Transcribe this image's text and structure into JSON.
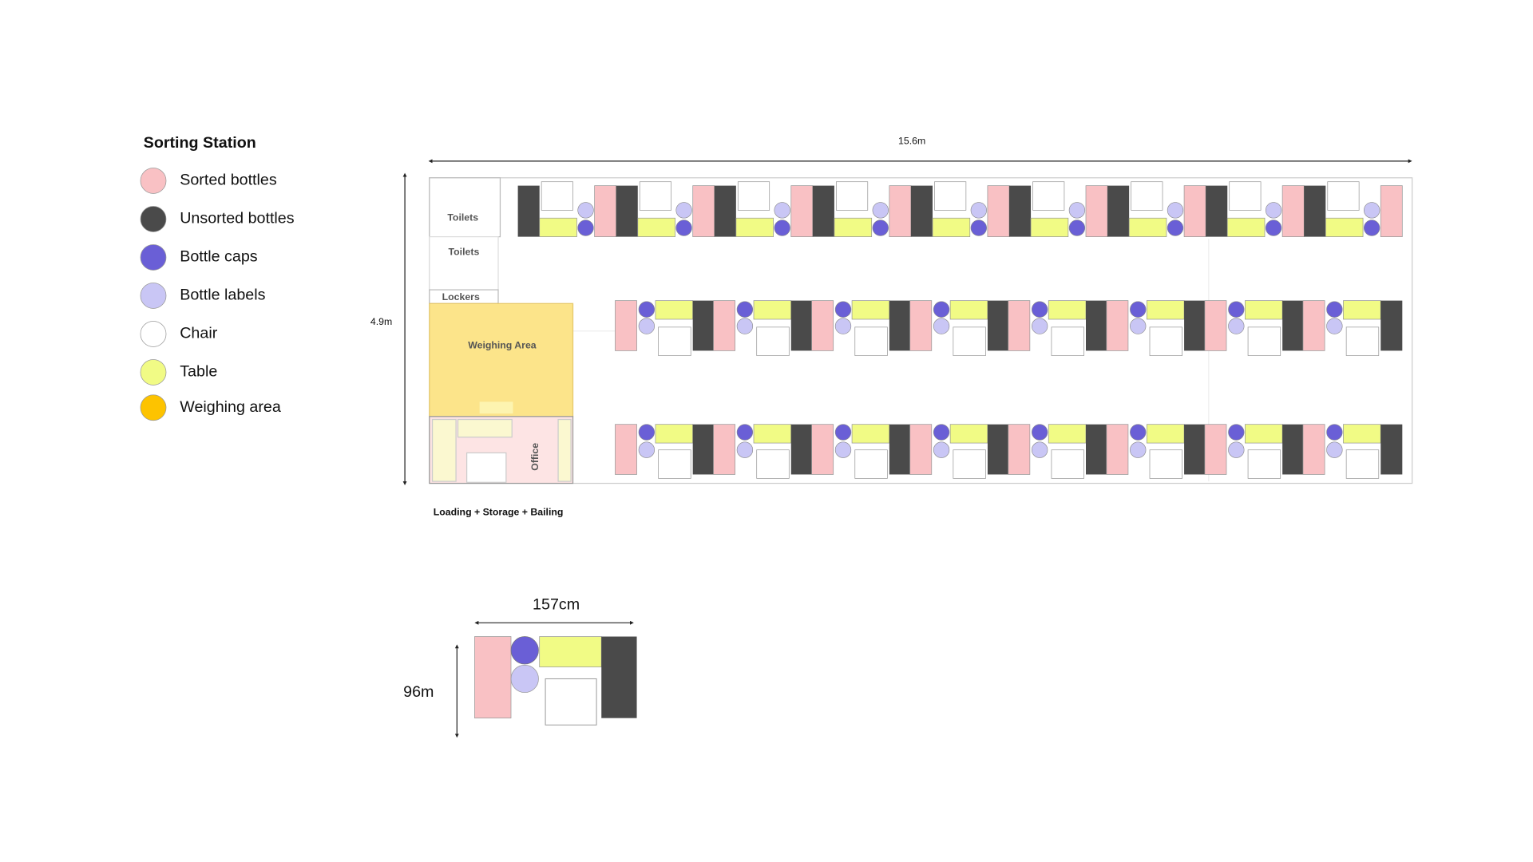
{
  "legend": {
    "title": "Sorting Station",
    "items": [
      "Sorted bottles",
      "Unsorted bottles",
      "Bottle caps",
      "Bottle labels",
      "Chair",
      "Table",
      "Weighing area"
    ]
  },
  "plan": {
    "width_label": "15.6m",
    "height_label": "4.9m",
    "rooms": [
      "Toilets",
      "Toilets",
      "Lockers",
      "Weighing Area",
      "Office"
    ],
    "footer": "Loading + Storage + Bailing"
  },
  "station": {
    "width_label": "157cm",
    "height_label": "96m"
  }
}
